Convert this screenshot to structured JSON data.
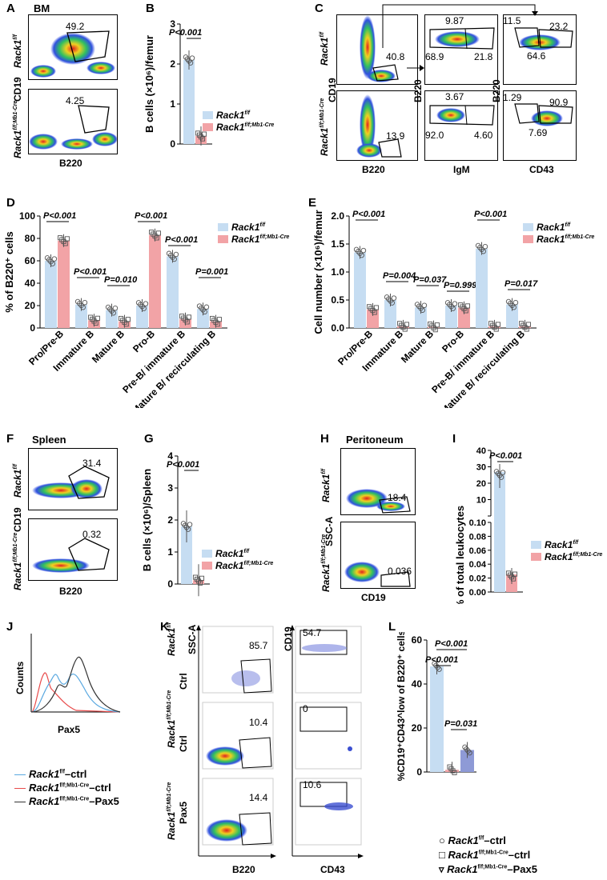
{
  "colors": {
    "ctrl": "#c6ddf2",
    "ko": "#f2a3a6",
    "pax5": "#8e9ad6",
    "hist_ctrl": "#59a8e0",
    "hist_ko": "#e84a4a",
    "hist_pax5": "#333333"
  },
  "legend": {
    "ctrl": "Rack1",
    "ctrl_sup": "f/f",
    "ko": "Rack1",
    "ko_sup": "f/f;Mb1-Cre",
    "ctrl_long": "Rack1",
    "ctrl_long_sup": "f/f",
    "ctrl_long_suffix": "–ctrl",
    "ko_long_suffix": "–ctrl",
    "pax5_suffix": "–Pax5"
  },
  "panelA": {
    "label": "A",
    "tissue": "BM",
    "row1": "Rack1",
    "row1_sup": "f/f",
    "row2": "Rack1",
    "row2_sup": "f/f;Mb1-Cre",
    "ylabel": "CD19",
    "xlabel": "B220",
    "gate1": "49.2",
    "gate2": "4.25"
  },
  "panelC": {
    "label": "C",
    "row1": "Rack1",
    "row1_sup": "f/f",
    "row2": "Rack1",
    "row2_sup": "f/f;Mb1-Cre",
    "ylabel1": "CD19",
    "ylabel2": "B220",
    "ylabel3": "B220",
    "xlabel1": "B220",
    "xlabel2": "IgM",
    "xlabel3": "CD43",
    "v1": "40.8",
    "v2": "9.87",
    "v3": "68.9",
    "v4": "21.8",
    "v5": "11.5",
    "v6": "23.2",
    "v7": "64.6",
    "v8": "13.9",
    "v9": "3.67",
    "v10": "92.0",
    "v11": "4.60",
    "v12": "1.29",
    "v13": "90.9",
    "v14": "7.69"
  },
  "panelF": {
    "label": "F",
    "tissue": "Spleen",
    "row1": "Rack1",
    "row1_sup": "f/f",
    "row2": "Rack1",
    "row2_sup": "f/f;Mb1-Cre",
    "ylabel": "CD19",
    "xlabel": "B220",
    "gate1": "31.4",
    "gate2": "0.32"
  },
  "panelH": {
    "label": "H",
    "tissue": "Peritoneum",
    "row1": "Rack1",
    "row1_sup": "f/f",
    "row2": "Rack1",
    "row2_sup": "f/f;Mb1-Cre",
    "ylabel": "SSC-A",
    "xlabel": "CD19",
    "gate1": "18.4",
    "gate2": "0.036"
  },
  "panelJ": {
    "label": "J",
    "ylabel": "Counts",
    "xlabel": "Pax5"
  },
  "panelK": {
    "label": "K",
    "r1": "Rack1",
    "r1_sup": "f/f",
    "r1b": "Ctrl",
    "r2": "Rack1",
    "r2_sup": "f/f;Mb1-Cre",
    "r2b": "Ctrl",
    "r3": "Rack1",
    "r3_sup": "f/f;Mb1-Cre",
    "r3b": "Pax5",
    "y1": "SSC-A",
    "y2": "CD19",
    "x1": "B220",
    "x2": "CD43",
    "a1": "85.7",
    "a2": "10.4",
    "a3": "14.4",
    "b1": "54.7",
    "b2": "0",
    "b3": "10.6"
  },
  "chart_data": [
    {
      "id": "B",
      "type": "bar",
      "ylabel": "B cells (×10⁶)/femur",
      "ylim": [
        0,
        3
      ],
      "yticks": [
        "0",
        "1",
        "2",
        "3"
      ],
      "series": [
        {
          "name": "Rack1 f/f",
          "values": [
            2.1
          ]
        },
        {
          "name": "Rack1 f/f;Mb1-Cre",
          "values": [
            0.2
          ]
        }
      ],
      "annotations": [
        "P<0.001"
      ]
    },
    {
      "id": "D",
      "type": "bar",
      "ylabel": "% of B220⁺ cells",
      "ylim": [
        0,
        100
      ],
      "yticks": [
        "0",
        "20",
        "40",
        "60",
        "80",
        "100"
      ],
      "categories": [
        "Pro/Pre-B",
        "Immature B",
        "Mature B",
        "Pro-B",
        "Pre-B/ immature B",
        "Mature B/ recirculating B"
      ],
      "series": [
        {
          "name": "Rack1 f/f",
          "values": [
            60,
            21,
            16,
            20,
            64,
            17
          ]
        },
        {
          "name": "Rack1 f/f;Mb1-Cre",
          "values": [
            78,
            7,
            6,
            83,
            8,
            6
          ]
        }
      ],
      "annotations": [
        "P<0.001",
        "P<0.001",
        "P=0.010",
        "P<0.001",
        "P<0.001",
        "P=0.001"
      ]
    },
    {
      "id": "E",
      "type": "bar",
      "ylabel": "Cell number (×10⁶)/femur",
      "ylim": [
        0,
        2.0
      ],
      "yticks": [
        "0.0",
        "0.5",
        "1.0",
        "1.5",
        "2.0"
      ],
      "categories": [
        "Pro/Pre-B",
        "Immature B",
        "Mature B",
        "Pro-B",
        "Pre-B/ immature B",
        "Mature B/ recirculating B"
      ],
      "series": [
        {
          "name": "Rack1 f/f",
          "values": [
            1.35,
            0.5,
            0.37,
            0.4,
            1.42,
            0.42
          ]
        },
        {
          "name": "Rack1 f/f;Mb1-Cre",
          "values": [
            0.33,
            0.03,
            0.02,
            0.36,
            0.03,
            0.03
          ]
        }
      ],
      "annotations": [
        "P<0.001",
        "P=0.004",
        "P=0.037",
        "P=0.999",
        "P<0.001",
        "P=0.017"
      ]
    },
    {
      "id": "G",
      "type": "bar",
      "ylabel": "B cells (×10⁶)/Spleen",
      "ylim": [
        0,
        4
      ],
      "yticks": [
        "0",
        "1",
        "2",
        "3",
        "4"
      ],
      "series": [
        {
          "name": "Rack1 f/f",
          "values": [
            1.8
          ]
        },
        {
          "name": "Rack1 f/f;Mb1-Cre",
          "values": [
            0.12
          ]
        }
      ],
      "annotations": [
        "P<0.001"
      ]
    },
    {
      "id": "I",
      "type": "bar",
      "ylabel": "% of total leukocytes",
      "yticks_top": [
        "10",
        "20",
        "30",
        "40"
      ],
      "yticks_bot": [
        "0.00",
        "0.02",
        "0.04",
        "0.06",
        "0.08",
        "0.10"
      ],
      "series": [
        {
          "name": "Rack1 f/f",
          "values": [
            22
          ]
        },
        {
          "name": "Rack1 f/f;Mb1-Cre",
          "values": [
            0.03
          ]
        }
      ],
      "annotations": [
        "P<0.001"
      ]
    },
    {
      "id": "L",
      "type": "bar",
      "ylabel": "%CD19⁺CD43^low of B220⁺ cells",
      "ylim": [
        0,
        60
      ],
      "yticks": [
        "0",
        "20",
        "40",
        "60"
      ],
      "categories": [
        "Rack1 f/f–ctrl",
        "Rack1 f/f;Mb1-Cre–ctrl",
        "Rack1 f/f;Mb1-Cre–Pax5"
      ],
      "values": [
        48,
        1,
        10
      ],
      "annotations": [
        "P<0.001",
        "P<0.001",
        "P=0.031"
      ]
    }
  ]
}
